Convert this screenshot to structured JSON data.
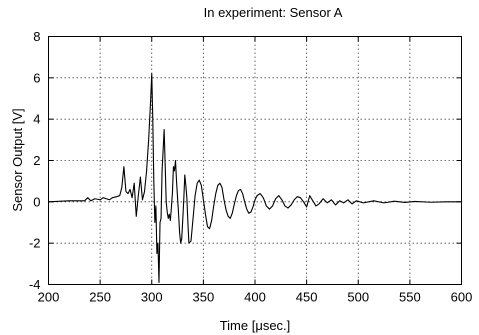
{
  "chart_data": {
    "type": "line",
    "title": "In experiment: Sensor A",
    "xlabel": "Time [μsec.]",
    "ylabel": "Sensor Output [V]",
    "xlim": [
      200,
      600
    ],
    "ylim": [
      -4,
      8
    ],
    "xticks": [
      200,
      250,
      300,
      350,
      400,
      450,
      500,
      550,
      600
    ],
    "yticks": [
      -4,
      -2,
      0,
      2,
      4,
      6,
      8
    ],
    "grid": true,
    "legend": "none",
    "line_color": "#000000",
    "series": [
      {
        "x": [
          200,
          220,
          235,
          238,
          241,
          245,
          250,
          253,
          256,
          259,
          262,
          266,
          269,
          271,
          273,
          275,
          277,
          279,
          281,
          283,
          285,
          287,
          289,
          291,
          293,
          295,
          297,
          299,
          300,
          301,
          302,
          303,
          304,
          305,
          306,
          307,
          308,
          309,
          310,
          311,
          312,
          313,
          314,
          315,
          316,
          317,
          318,
          319,
          320,
          321,
          322,
          323,
          324,
          325,
          326,
          327,
          328,
          329,
          330,
          331,
          332,
          333,
          334,
          335,
          336,
          338,
          340,
          342,
          344,
          346,
          348,
          350,
          352,
          354,
          356,
          358,
          360,
          362,
          364,
          366,
          368,
          370,
          372,
          374,
          376,
          378,
          380,
          382,
          384,
          386,
          388,
          390,
          392,
          394,
          396,
          398,
          400,
          402,
          405,
          408,
          411,
          414,
          417,
          420,
          423,
          426,
          429,
          432,
          435,
          438,
          441,
          444,
          447,
          450,
          453,
          456,
          459,
          462,
          466,
          470,
          474,
          478,
          482,
          486,
          490,
          494,
          498,
          505,
          515,
          525,
          535,
          545,
          555,
          570,
          585,
          600
        ],
        "y": [
          0,
          0.05,
          0.05,
          0.2,
          0.05,
          0.15,
          0.1,
          0.2,
          0.15,
          0.1,
          0.2,
          0.25,
          0.3,
          0.7,
          1.7,
          0.5,
          0.4,
          0.6,
          0.2,
          0.9,
          -0.7,
          0.3,
          1.2,
          0.1,
          0.5,
          1.5,
          3.0,
          5.0,
          6.2,
          4.0,
          1.0,
          -1.0,
          -0.2,
          -2.5,
          -2.0,
          -3.9,
          -1.0,
          -0.8,
          1.5,
          2.5,
          3.5,
          1.8,
          0,
          -0.5,
          -0.8,
          -0.6,
          -0.9,
          -0.3,
          0.4,
          1.7,
          1.5,
          2.0,
          1.0,
          0.2,
          -0.6,
          -1.5,
          -2.0,
          -1.8,
          -0.9,
          0.1,
          1.3,
          0.8,
          0.2,
          -1.0,
          -2.0,
          -1.9,
          -0.8,
          0.3,
          0.9,
          1.05,
          0.8,
          0.1,
          -0.6,
          -1.2,
          -1.3,
          -0.9,
          -0.2,
          0.4,
          0.8,
          0.9,
          0.7,
          0.1,
          -0.4,
          -0.7,
          -0.8,
          -0.55,
          -0.1,
          0.3,
          0.55,
          0.6,
          0.4,
          0.0,
          -0.35,
          -0.55,
          -0.5,
          -0.25,
          0.1,
          0.3,
          0.4,
          0.2,
          -0.2,
          -0.35,
          -0.2,
          0.15,
          0.3,
          0.1,
          -0.2,
          -0.3,
          -0.15,
          0.1,
          0.25,
          0.2,
          0.0,
          -0.25,
          0.3,
          0.05,
          -0.2,
          -0.1,
          0.15,
          -0.05,
          0.1,
          -0.15,
          0.05,
          -0.05,
          0.1,
          -0.1,
          0.05,
          -0.05,
          0.05,
          -0.05,
          0.03,
          -0.03,
          0.02,
          -0.02,
          0.0,
          0.0
        ]
      }
    ]
  }
}
